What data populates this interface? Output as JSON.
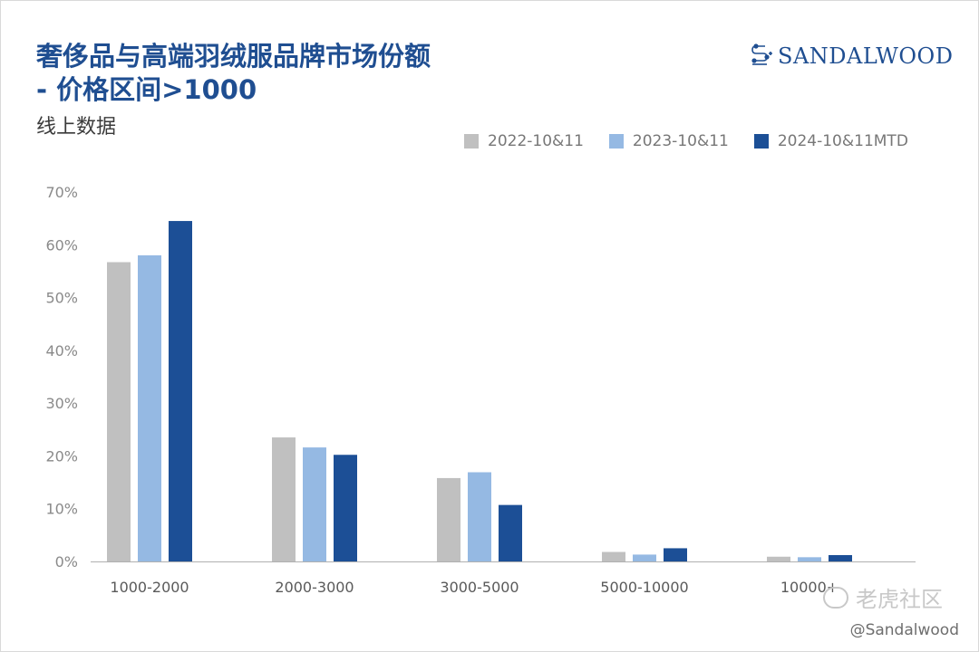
{
  "header": {
    "title_line1": "奢侈品与高端羽绒服品牌市场份额",
    "title_line2": "- 价格区间>1000",
    "subtitle": "线上数据"
  },
  "logo": {
    "text": "SANDALWOOD",
    "icon": "sandalwood-logo-icon",
    "color": "#1f4e91"
  },
  "watermark": {
    "text": "老虎社区",
    "icon": "tiger-community-icon"
  },
  "credit": {
    "text": "@Sandalwood"
  },
  "colors": {
    "series": [
      "#c0c0c0",
      "#95b9e3",
      "#1c4f96"
    ],
    "axis": "#b0b0b0",
    "tick_text": "#8a8a8a"
  },
  "chart_data": {
    "type": "bar",
    "categories": [
      "1000-2000",
      "2000-3000",
      "3000-5000",
      "5000-10000",
      "10000+"
    ],
    "series": [
      {
        "name": "2022-10&11",
        "values": [
          56.7,
          23.5,
          15.8,
          1.8,
          0.9
        ]
      },
      {
        "name": "2023-10&11",
        "values": [
          58.0,
          21.6,
          16.9,
          1.3,
          0.8
        ]
      },
      {
        "name": "2024-10&11MTD",
        "values": [
          64.5,
          20.2,
          10.7,
          2.5,
          1.2
        ]
      }
    ],
    "ylim": [
      0,
      70
    ],
    "yticks": [
      "0%",
      "10%",
      "20%",
      "30%",
      "40%",
      "50%",
      "60%",
      "70%"
    ],
    "ytick_values": [
      0,
      10,
      20,
      30,
      40,
      50,
      60,
      70
    ],
    "legend_position": "top-right",
    "grid": false
  }
}
